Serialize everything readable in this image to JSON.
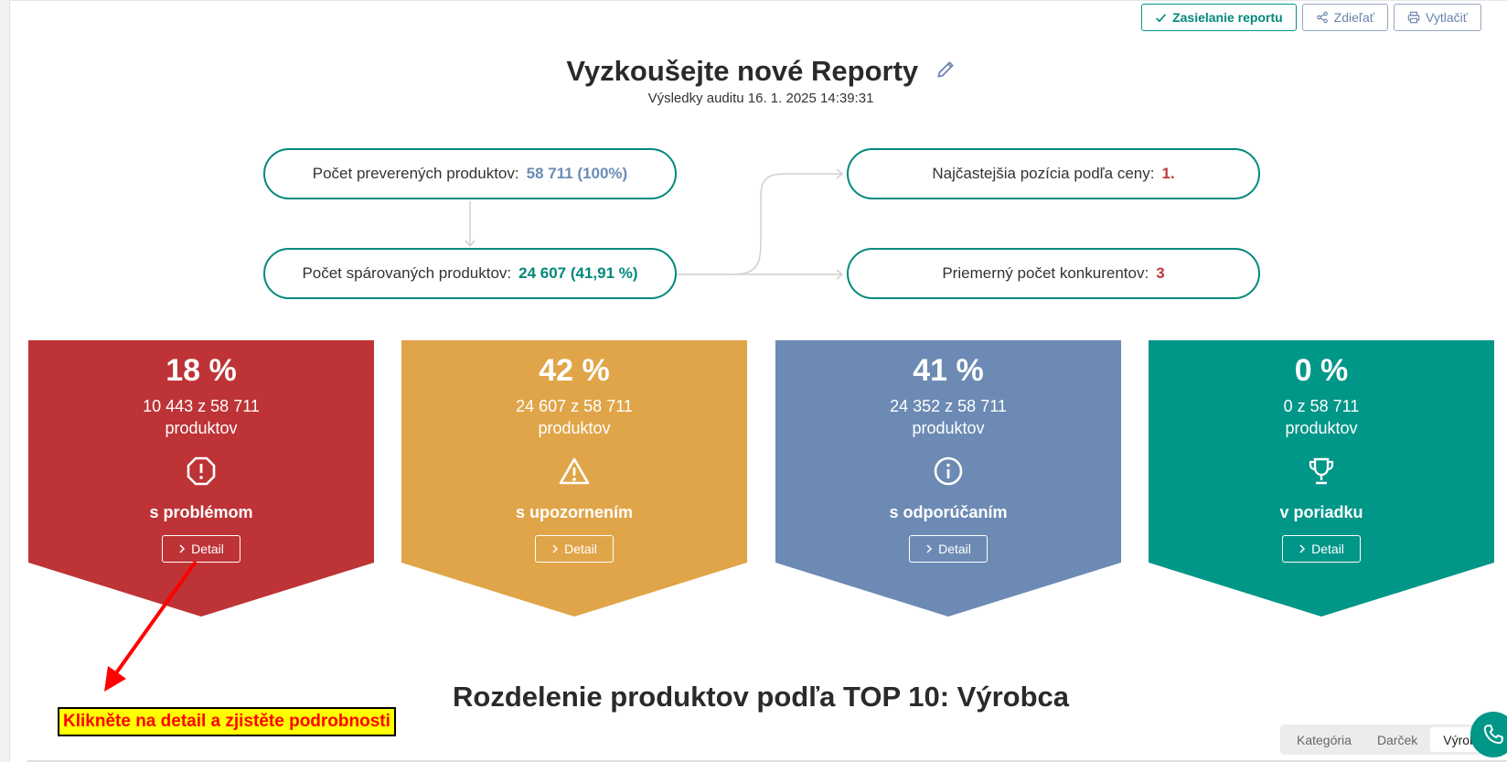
{
  "toolbar": {
    "send_report": "Zasielanie reportu",
    "share": "Zdieľať",
    "print": "Vytlačiť"
  },
  "header": {
    "title": "Vyzkoušejte nové Reporty",
    "subtitle": "Výsledky auditu 16. 1. 2025 14:39:31"
  },
  "flow": {
    "checked": {
      "label": "Počet preverených produktov:",
      "value": "58 711 (100%)"
    },
    "matched": {
      "label": "Počet spárovaných produktov:",
      "value": "24 607 (41,91 %)"
    },
    "position": {
      "label": "Najčastejšia pozícia podľa ceny:",
      "value": "1."
    },
    "competitors": {
      "label": "Priemerný počet konkurentov:",
      "value": "3"
    }
  },
  "cards": [
    {
      "percent": "18 %",
      "count": "10 443 z 58 711",
      "unit": "produktov",
      "label": "s problémom",
      "detail": "Detail",
      "color": "#bd3336",
      "icon": "exclamation-octagon-icon"
    },
    {
      "percent": "42 %",
      "count": "24 607 z 58 711",
      "unit": "produktov",
      "label": "s upozornením",
      "detail": "Detail",
      "color": "#e0a548",
      "icon": "warning-triangle-icon"
    },
    {
      "percent": "41 %",
      "count": "24 352 z 58 711",
      "unit": "produktov",
      "label": "s odporúčaním",
      "detail": "Detail",
      "color": "#6c8ab3",
      "icon": "info-circle-icon"
    },
    {
      "percent": "0 %",
      "count": "0 z 58 711",
      "unit": "produktov",
      "label": "v poriadku",
      "detail": "Detail",
      "color": "#009688",
      "icon": "trophy-icon"
    }
  ],
  "annotation": {
    "text": "Klikněte na detail a zjistěte podrobnosti",
    "color": "#ff0000",
    "background": "#ffff00"
  },
  "section": {
    "title": "Rozdelenie produktov podľa TOP 10: Výrobca"
  },
  "tabs": [
    {
      "label": "Kategória",
      "active": false
    },
    {
      "label": "Darček",
      "active": false
    },
    {
      "label": "Výrobca",
      "active": true
    }
  ]
}
